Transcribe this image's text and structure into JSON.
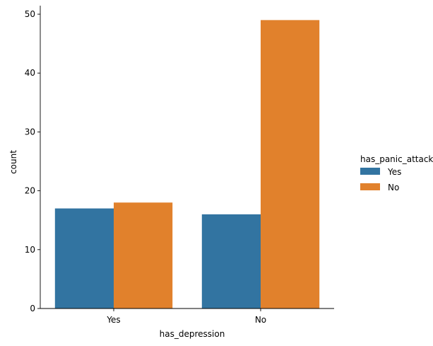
{
  "chart_data": {
    "type": "bar",
    "xlabel": "has_depression",
    "ylabel": "count",
    "categories": [
      "Yes",
      "No"
    ],
    "series": [
      {
        "name": "Yes",
        "values": [
          17,
          16
        ],
        "color": "#3274a1"
      },
      {
        "name": "No",
        "values": [
          18,
          49
        ],
        "color": "#e1812c"
      }
    ],
    "ylim": [
      0,
      51.45
    ],
    "yticks": [
      0,
      10,
      20,
      30,
      40,
      50
    ],
    "legend": {
      "title": "has_panic_attack",
      "placement": "right"
    },
    "grid": false
  }
}
